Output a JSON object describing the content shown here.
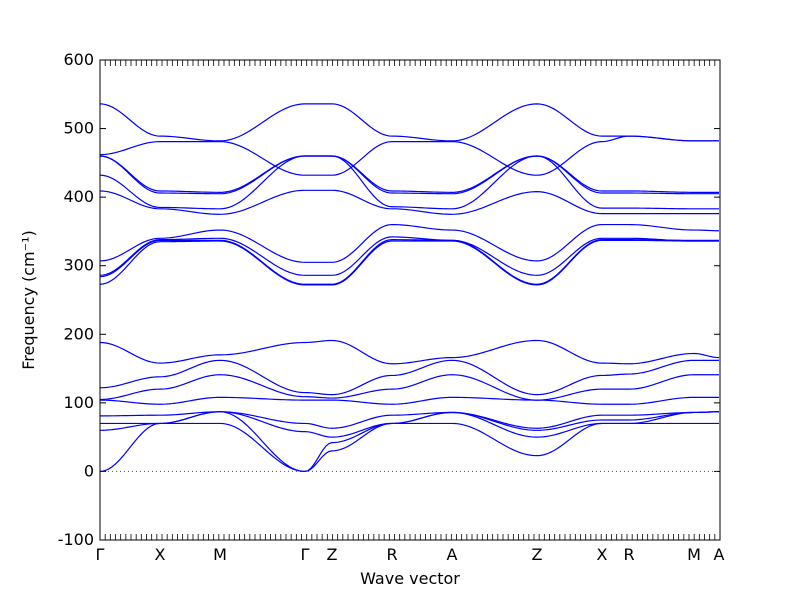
{
  "chart_data": {
    "type": "line",
    "title": "",
    "xlabel": "Wave vector",
    "ylabel": "Frequency (cm⁻¹)",
    "ylim": [
      -100,
      600
    ],
    "yticks": [
      -100,
      0,
      100,
      200,
      300,
      400,
      500,
      600
    ],
    "zero_line": true,
    "x_range": [
      0,
      620
    ],
    "high_symmetry_points": [
      {
        "label": "Γ",
        "x": 0
      },
      {
        "label": "X",
        "x": 60
      },
      {
        "label": "M",
        "x": 120
      },
      {
        "label": "Γ",
        "x": 205
      },
      {
        "label": "Z",
        "x": 232
      },
      {
        "label": "R",
        "x": 292
      },
      {
        "label": "A",
        "x": 352
      },
      {
        "label": "Z",
        "x": 437
      },
      {
        "label": "X",
        "x": 502
      },
      {
        "label": "R",
        "x": 529
      },
      {
        "label": "M",
        "x": 594
      },
      {
        "label": "A",
        "x": 619
      }
    ],
    "series_color": "#0000ff",
    "series": [
      {
        "values": [
          536,
          489,
          482,
          536,
          536,
          489,
          482,
          536,
          489,
          489,
          482,
          482
        ]
      },
      {
        "values": [
          462,
          481,
          481,
          432,
          432,
          481,
          481,
          432,
          481,
          489,
          482,
          482
        ]
      },
      {
        "values": [
          460,
          409,
          407,
          460,
          460,
          409,
          407,
          460,
          409,
          409,
          407,
          407
        ]
      },
      {
        "values": [
          460,
          406,
          405,
          460,
          460,
          406,
          405,
          460,
          406,
          406,
          405,
          405
        ]
      },
      {
        "values": [
          432,
          385,
          383,
          460,
          460,
          386,
          383,
          460,
          384,
          384,
          383,
          383
        ]
      },
      {
        "values": [
          409,
          383,
          375,
          410,
          410,
          383,
          375,
          408,
          376,
          376,
          376,
          376
        ]
      },
      {
        "values": [
          307,
          340,
          352,
          305,
          305,
          360,
          352,
          307,
          360,
          360,
          352,
          351
        ]
      },
      {
        "values": [
          286,
          338,
          340,
          286,
          286,
          342,
          337,
          286,
          340,
          340,
          336,
          336
        ]
      },
      {
        "values": [
          284,
          337,
          337,
          273,
          273,
          338,
          337,
          273,
          338,
          338,
          337,
          337
        ]
      },
      {
        "values": [
          273,
          335,
          336,
          272,
          272,
          336,
          336,
          272,
          337,
          337,
          336,
          336
        ]
      },
      {
        "values": [
          188,
          158,
          170,
          188,
          191,
          157,
          166,
          191,
          158,
          157,
          172,
          166
        ]
      },
      {
        "values": [
          122,
          138,
          162,
          115,
          112,
          140,
          162,
          112,
          140,
          142,
          162,
          162
        ]
      },
      {
        "values": [
          105,
          120,
          141,
          109,
          107,
          120,
          141,
          104,
          120,
          120,
          141,
          141
        ]
      },
      {
        "values": [
          104,
          98,
          108,
          104,
          104,
          98,
          108,
          104,
          98,
          98,
          108,
          108
        ]
      },
      {
        "values": [
          81,
          82,
          87,
          70,
          63,
          82,
          86,
          63,
          82,
          82,
          86,
          87
        ]
      },
      {
        "values": [
          70,
          70,
          87,
          58,
          50,
          70,
          86,
          60,
          75,
          75,
          86,
          87
        ]
      },
      {
        "values": [
          60,
          70,
          87,
          0,
          42,
          70,
          86,
          50,
          70,
          70,
          86,
          87
        ]
      },
      {
        "values": [
          0,
          70,
          70,
          0,
          30,
          70,
          70,
          23,
          70,
          70,
          70,
          70
        ]
      }
    ]
  }
}
